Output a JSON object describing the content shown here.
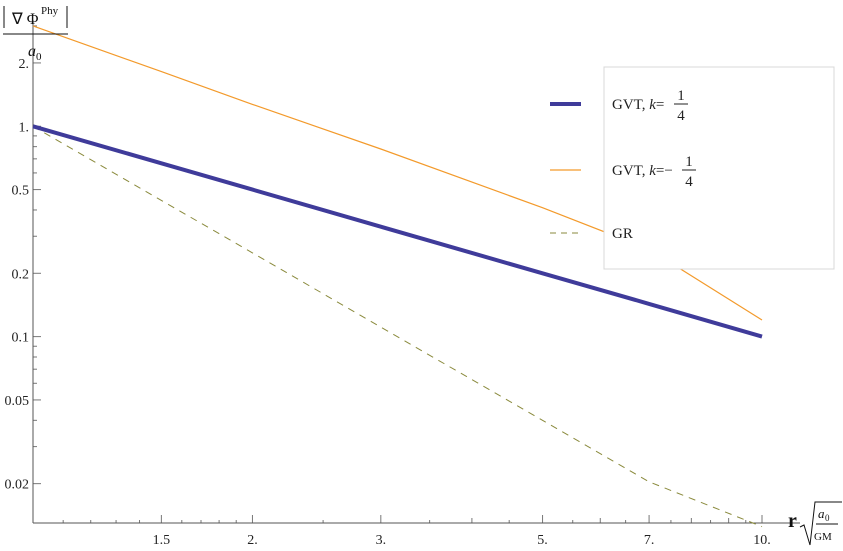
{
  "chart_data": {
    "type": "line",
    "y_scale": "log",
    "x_scale": "log",
    "xlim": [
      1,
      10
    ],
    "ylim": [
      0.013,
      3.2
    ],
    "x_ticks": [
      {
        "value": 1.5,
        "label": "1.5"
      },
      {
        "value": 2,
        "label": "2."
      },
      {
        "value": 3,
        "label": "3."
      },
      {
        "value": 5,
        "label": "5."
      },
      {
        "value": 7,
        "label": "7."
      },
      {
        "value": 10,
        "label": "10."
      }
    ],
    "y_ticks": [
      {
        "value": 2,
        "label": "2."
      },
      {
        "value": 1,
        "label": "1."
      },
      {
        "value": 0.5,
        "label": "0.5"
      },
      {
        "value": 0.2,
        "label": "0.2"
      },
      {
        "value": 0.1,
        "label": "0.1"
      },
      {
        "value": 0.05,
        "label": "0.05"
      },
      {
        "value": 0.02,
        "label": "0.02"
      }
    ],
    "ylabel": {
      "numerator_symbol": "∇ Φ",
      "numerator_superscript": "Phy",
      "denominator": "a",
      "denominator_subscript": "0"
    },
    "xlabel": {
      "prefix": "r",
      "radical_numerator": "a",
      "radical_numerator_subscript": "0",
      "radical_denominator": "GM"
    },
    "legend_position": "top-right",
    "series": [
      {
        "name_prefix": "GVT, ",
        "name_var": "k",
        "name_eq": "=",
        "name_frac_num": "1",
        "name_frac_den": "4",
        "color": "#3f3b9a",
        "style": "solid-thick",
        "x": [
          1,
          1.5,
          2,
          3,
          5,
          7,
          10
        ],
        "y": [
          1.0,
          0.667,
          0.5,
          0.333,
          0.2,
          0.143,
          0.1
        ]
      },
      {
        "name_prefix": "GVT, ",
        "name_var": "k",
        "name_eq": "=−",
        "name_frac_num": "1",
        "name_frac_den": "4",
        "color": "#f39a2b",
        "style": "solid-thin",
        "x": [
          1,
          1.5,
          2,
          3,
          5,
          7,
          10
        ],
        "y": [
          3.0,
          1.82,
          1.27,
          0.78,
          0.41,
          0.26,
          0.12
        ]
      },
      {
        "name_prefix": "GR",
        "name_var": "",
        "name_eq": "",
        "name_frac_num": "",
        "name_frac_den": "",
        "color": "#8a8a3c",
        "style": "dashed",
        "x": [
          1,
          1.5,
          2,
          3,
          5,
          7,
          10
        ],
        "y": [
          1.0,
          0.444,
          0.25,
          0.111,
          0.04,
          0.0204,
          0.0125
        ]
      }
    ]
  }
}
